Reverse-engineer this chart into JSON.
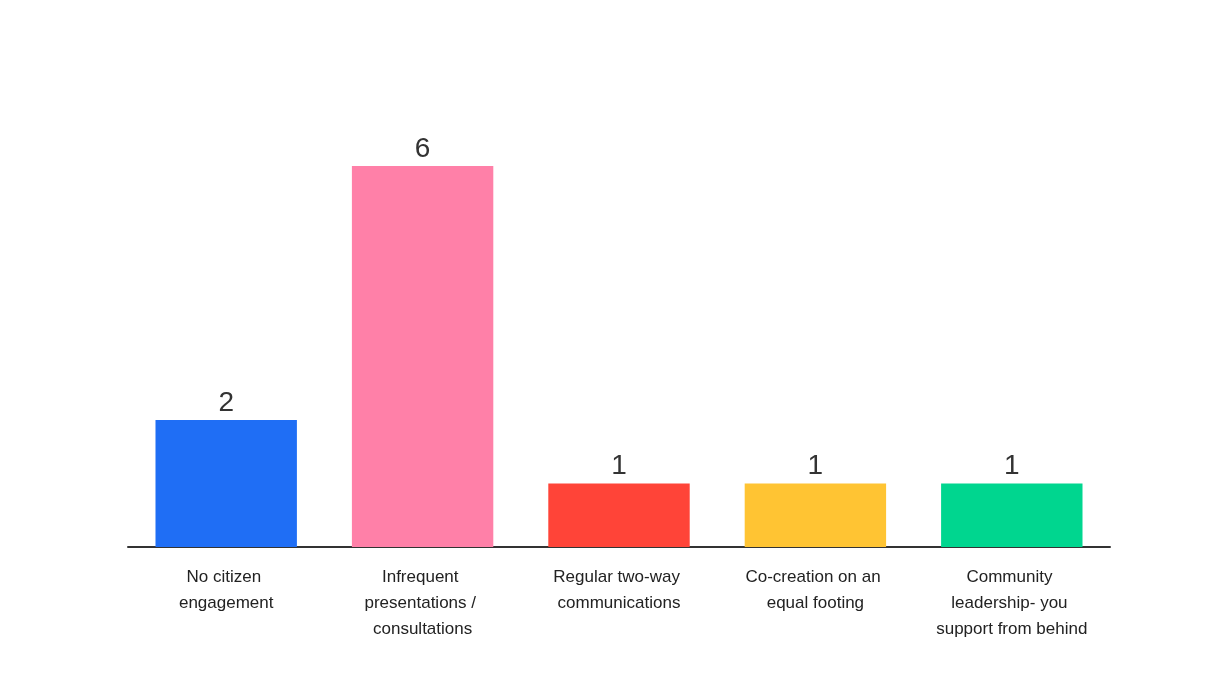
{
  "chart_data": {
    "type": "bar",
    "categories": [
      "No citizen engagement",
      "Infrequent presentations / consultations",
      "Regular two-way communications",
      "Co-creation on an equal footing",
      "Community leadership- you support from behind"
    ],
    "values": [
      2,
      6,
      1,
      1,
      1
    ],
    "colors": [
      "#1f6ef5",
      "#ff80a8",
      "#ff4438",
      "#ffc433",
      "#00d68f"
    ],
    "data_labels": true
  }
}
